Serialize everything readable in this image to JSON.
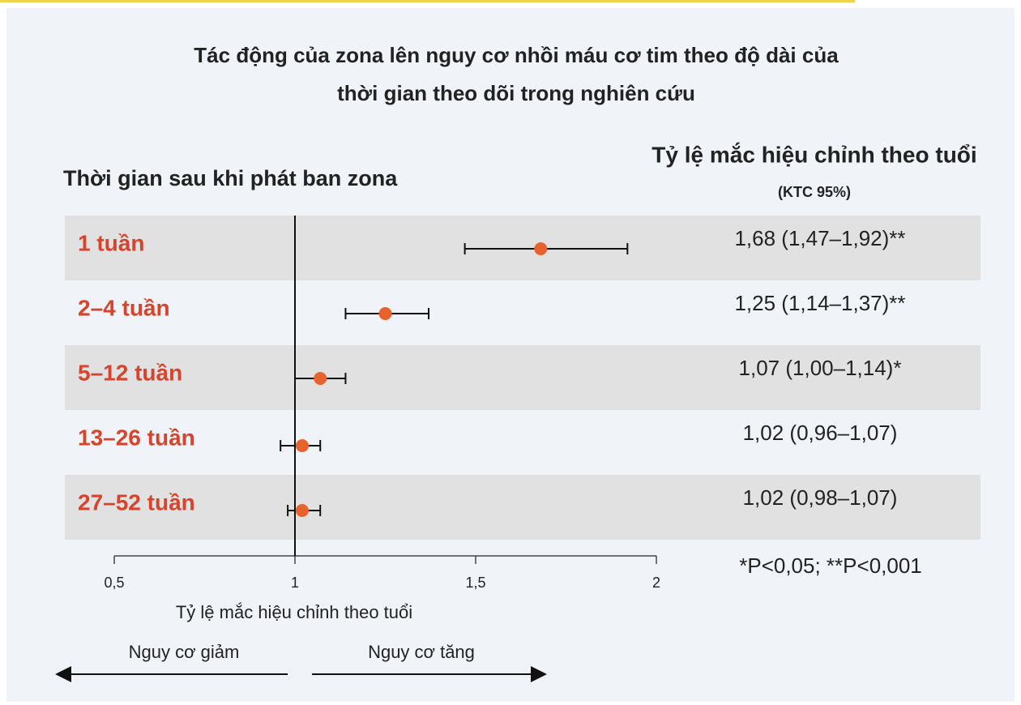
{
  "chart_data": {
    "type": "forest",
    "title_lines": [
      "Tác động của zona lên nguy cơ nhồi máu cơ tim theo độ dài của",
      "thời gian theo dõi trong nghiên cứu"
    ],
    "row_header": "Thời gian sau khi phát ban zona",
    "value_header": "Tỷ lệ mắc hiệu chỉnh theo tuổi",
    "value_subheader": "(KTC 95%)",
    "categories": [
      "1 tuần",
      "2–4 tuần",
      "5–12 tuần",
      "13–26 tuần",
      "27–52 tuần"
    ],
    "values": [
      1.68,
      1.25,
      1.07,
      1.02,
      1.02
    ],
    "lower": [
      1.47,
      1.14,
      1.0,
      0.96,
      0.98
    ],
    "upper": [
      1.92,
      1.37,
      1.14,
      1.07,
      1.07
    ],
    "value_labels": [
      "1,68 (1,47–1,92)**",
      "1,25 (1,14–1,37)**",
      "1,07 (1,00–1,14)*",
      "1,02 (0,96–1,07)",
      "1,02 (0,98–1,07)"
    ],
    "color": "#e8632b",
    "label_color": "#d9432b",
    "footnote": "*P<0,05; **P<0,001",
    "xlabel": "Tỷ lệ mắc hiệu chỉnh theo tuổi",
    "xlim": [
      0.5,
      2
    ],
    "xticks": [
      {
        "value": 0.5,
        "label": "0,5"
      },
      1,
      {
        "value": 1.5,
        "label": "1,5"
      },
      2
    ],
    "reference_line": 1,
    "direction_left": "Nguy cơ giảm",
    "direction_right": "Nguy cơ tăng"
  }
}
